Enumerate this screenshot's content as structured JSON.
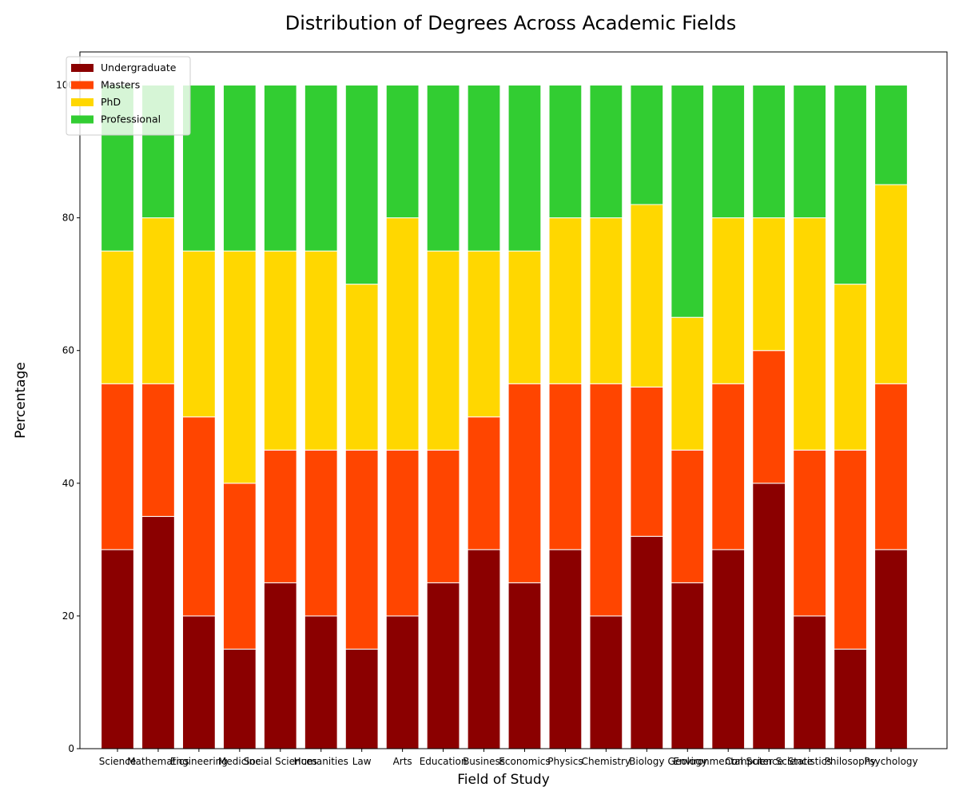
{
  "chart_data": {
    "type": "bar",
    "stacked": true,
    "title": "Distribution of Degrees Across Academic Fields",
    "xlabel": "Field of Study",
    "ylabel": "Percentage",
    "ylim": [
      0,
      105
    ],
    "yticks": [
      0,
      20,
      40,
      60,
      80,
      100
    ],
    "grid": false,
    "legend_position": "upper-left",
    "categories": [
      "Science",
      "Mathematics",
      "Engineering",
      "Medicine",
      "Social Sciences",
      "Humanities",
      "Law",
      "Arts",
      "Education",
      "Business",
      "Economics",
      "Physics",
      "Chemistry",
      "Biology",
      "Geology",
      "Environmental Science",
      "Computer Science",
      "Statistics",
      "Philosophy",
      "Psychology"
    ],
    "series": [
      {
        "name": "Undergraduate",
        "color": "#8B0000",
        "values": [
          30,
          35,
          20,
          15,
          25,
          20,
          15,
          20,
          25,
          30,
          25,
          30,
          20,
          32,
          25,
          30,
          40,
          20,
          15,
          30
        ]
      },
      {
        "name": "Masters",
        "color": "#FF4500",
        "values": [
          25,
          20,
          30,
          25,
          20,
          25,
          30,
          25,
          20,
          20,
          30,
          25,
          35,
          22.5,
          20,
          25,
          20,
          25,
          30,
          25
        ]
      },
      {
        "name": "PhD",
        "color": "#FFD700",
        "values": [
          20,
          25,
          25,
          35,
          30,
          30,
          25,
          35,
          30,
          25,
          20,
          25,
          25,
          27.5,
          20,
          25,
          20,
          35,
          25,
          30
        ]
      },
      {
        "name": "Professional",
        "color": "#32CD32",
        "values": [
          25,
          20,
          25,
          25,
          25,
          25,
          30,
          20,
          25,
          25,
          25,
          20,
          20,
          18,
          35,
          20,
          20,
          20,
          30,
          15
        ]
      }
    ]
  }
}
